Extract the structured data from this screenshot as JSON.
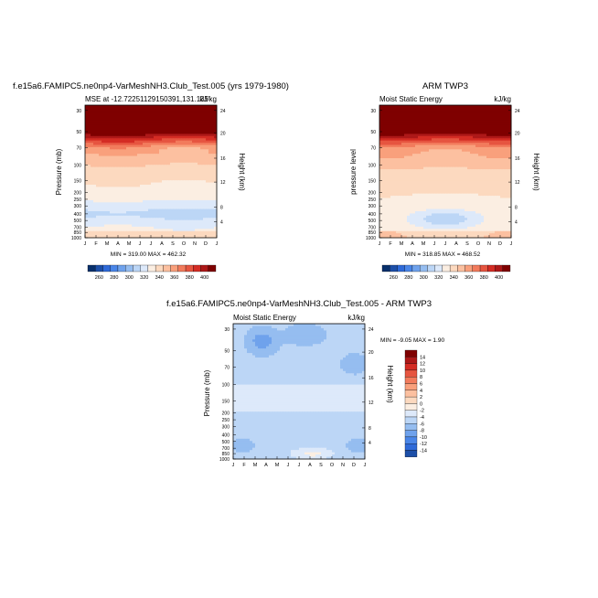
{
  "palette": [
    "#08306b",
    "#1d4fa8",
    "#2f6ad8",
    "#4a86e8",
    "#6fa2ec",
    "#95bdf0",
    "#bcd6f6",
    "#dde9fa",
    "#fbeee2",
    "#fcd9bf",
    "#fcc0a0",
    "#f9a07c",
    "#f27b5c",
    "#e65540",
    "#d42c24",
    "#ad1818",
    "#7f0000"
  ],
  "chart_data": [
    {
      "type": "heatmap",
      "id": "model",
      "title": "f.e15a6.FAMIPC5.ne0np4-VarMeshNH3.Club_Test.005 (yrs 1979-1980)",
      "left_label": "MSE at -12.72251129150391,131.135",
      "right_label": "kJ/kg",
      "ylabel": "Pressure (mb)",
      "ylabel_right": "Height (km)",
      "stats": "MIN = 319.00 MAX = 462.32",
      "months": [
        "J",
        "F",
        "M",
        "A",
        "M",
        "J",
        "J",
        "A",
        "S",
        "O",
        "N",
        "D",
        "J"
      ],
      "pressure_ticks": [
        "30",
        "50",
        "70",
        "100",
        "150",
        "200",
        "250",
        "300",
        "400",
        "500",
        "700",
        "850",
        "1000"
      ],
      "height_ticks": [
        "24",
        "20",
        "16",
        "12",
        "8",
        "4"
      ],
      "levels": [
        260,
        270,
        280,
        290,
        300,
        310,
        320,
        330,
        340,
        350,
        360,
        370,
        380,
        390,
        400
      ],
      "colorbar_labels": [
        "260",
        "280",
        "300",
        "320",
        "340",
        "360",
        "380",
        "400"
      ]
    },
    {
      "type": "heatmap",
      "id": "obs",
      "title": "ARM TWP3",
      "left_label": "Moist Static Energy",
      "right_label": "kJ/kg",
      "ylabel": "pressure level",
      "ylabel_right": "Height (km)",
      "stats": "MIN = 318.85 MAX = 468.52",
      "months": [
        "J",
        "F",
        "M",
        "A",
        "M",
        "J",
        "J",
        "A",
        "S",
        "O",
        "N",
        "D",
        "J"
      ],
      "pressure_ticks": [
        "30",
        "50",
        "70",
        "100",
        "150",
        "200",
        "250",
        "300",
        "400",
        "500",
        "700",
        "850",
        "1000"
      ],
      "height_ticks": [
        "24",
        "20",
        "16",
        "12",
        "8",
        "4"
      ],
      "levels": [
        260,
        270,
        280,
        290,
        300,
        310,
        320,
        330,
        340,
        350,
        360,
        370,
        380,
        390,
        400
      ],
      "colorbar_labels": [
        "260",
        "280",
        "300",
        "320",
        "340",
        "360",
        "380",
        "400"
      ]
    },
    {
      "type": "heatmap",
      "id": "diff",
      "title": "f.e15a6.FAMIPC5.ne0np4-VarMeshNH3.Club_Test.005 - ARM TWP3",
      "left_label": "Moist Static Energy",
      "right_label": "kJ/kg",
      "ylabel": "Pressure (mb)",
      "ylabel_right": "Height (km)",
      "stats": "MIN =  -9.05 MAX =   1.90",
      "months": [
        "J",
        "F",
        "M",
        "A",
        "M",
        "J",
        "J",
        "A",
        "S",
        "O",
        "N",
        "D",
        "J"
      ],
      "pressure_ticks": [
        "30",
        "50",
        "70",
        "100",
        "150",
        "200",
        "250",
        "300",
        "400",
        "500",
        "700",
        "850",
        "1000"
      ],
      "height_ticks": [
        "24",
        "20",
        "16",
        "12",
        "8",
        "4"
      ],
      "colorbar_labels": [
        "14",
        "12",
        "10",
        "8",
        "6",
        "4",
        "2",
        "0",
        "-2",
        "-4",
        "-6",
        "-8",
        "-10",
        "-12",
        "-14"
      ]
    }
  ]
}
